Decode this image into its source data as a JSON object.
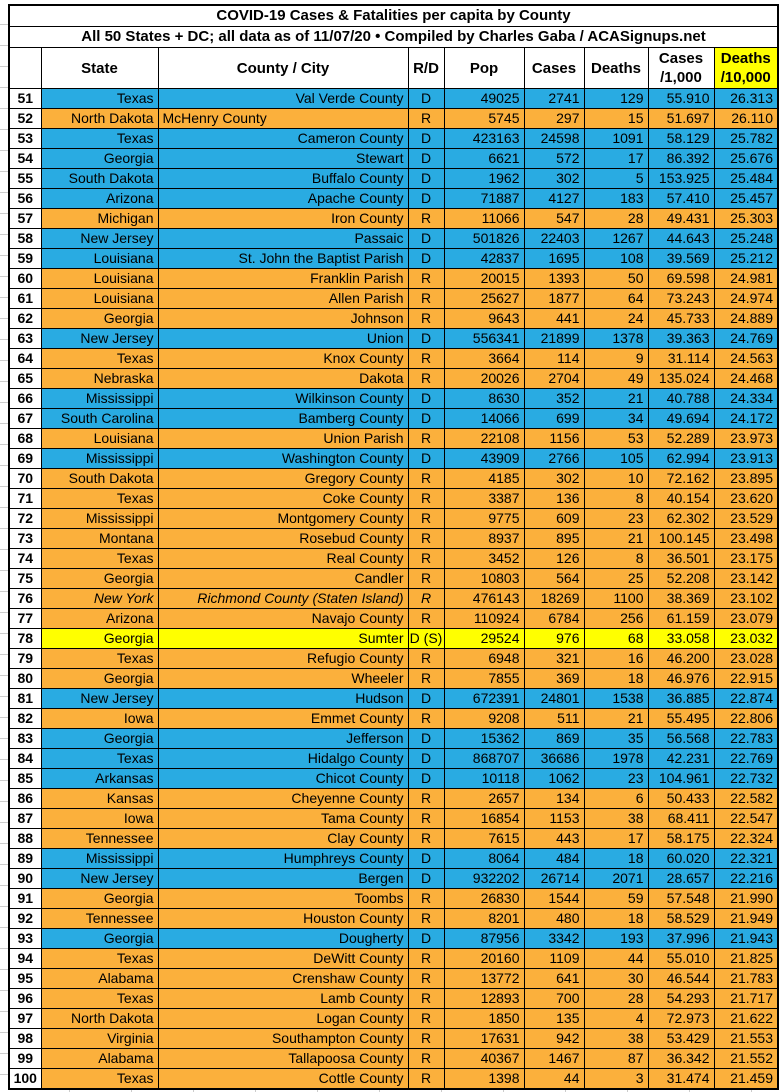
{
  "title": {
    "line1": "COVID-19 Cases & Fatalities per capita by County",
    "line2": "All 50 States + DC; all data as of 11/07/20  • Compiled by Charles Gaba / ACASignups.net"
  },
  "headers": {
    "rank": "",
    "state": "State",
    "county": "County / City",
    "rd": "R/D",
    "pop": "Pop",
    "cases": "Cases",
    "deaths": "Deaths",
    "cases_per_1000_line1": "Cases",
    "cases_per_1000_line2": "/1,000",
    "deaths_per_10000_line1": "Deaths",
    "deaths_per_10000_line2": "/10,000"
  },
  "colors": {
    "democrat_row": "#29ABE2",
    "republican_row": "#FBB03C",
    "swing_row": "#FFFF00",
    "deaths_header_highlight": "#FFFF00",
    "border": "#000000"
  },
  "rows": [
    {
      "rank": "51",
      "state": "Texas",
      "county": "Val Verde County",
      "rd": "D",
      "party": "D",
      "pop": "49025",
      "cases": "2741",
      "deaths": "129",
      "cases_per_1000": "55.910",
      "deaths_per_10000": "26.313"
    },
    {
      "rank": "52",
      "state": "North Dakota",
      "county": "McHenry County",
      "county_align": "left",
      "rd": "R",
      "party": "R",
      "pop": "5745",
      "cases": "297",
      "deaths": "15",
      "cases_per_1000": "51.697",
      "deaths_per_10000": "26.110"
    },
    {
      "rank": "53",
      "state": "Texas",
      "county": "Cameron County",
      "rd": "D",
      "party": "D",
      "pop": "423163",
      "cases": "24598",
      "deaths": "1091",
      "cases_per_1000": "58.129",
      "deaths_per_10000": "25.782"
    },
    {
      "rank": "54",
      "state": "Georgia",
      "county": "Stewart",
      "rd": "D",
      "party": "D",
      "pop": "6621",
      "cases": "572",
      "deaths": "17",
      "cases_per_1000": "86.392",
      "deaths_per_10000": "25.676"
    },
    {
      "rank": "55",
      "state": "South Dakota",
      "county": "Buffalo County",
      "rd": "D",
      "party": "D",
      "pop": "1962",
      "cases": "302",
      "deaths": "5",
      "cases_per_1000": "153.925",
      "deaths_per_10000": "25.484"
    },
    {
      "rank": "56",
      "state": "Arizona",
      "county": "Apache County",
      "rd": "D",
      "party": "D",
      "pop": "71887",
      "cases": "4127",
      "deaths": "183",
      "cases_per_1000": "57.410",
      "deaths_per_10000": "25.457"
    },
    {
      "rank": "57",
      "state": "Michigan",
      "county": "Iron County",
      "rd": "R",
      "party": "R",
      "pop": "11066",
      "cases": "547",
      "deaths": "28",
      "cases_per_1000": "49.431",
      "deaths_per_10000": "25.303"
    },
    {
      "rank": "58",
      "state": "New Jersey",
      "county": "Passaic",
      "rd": "D",
      "party": "D",
      "pop": "501826",
      "cases": "22403",
      "deaths": "1267",
      "cases_per_1000": "44.643",
      "deaths_per_10000": "25.248"
    },
    {
      "rank": "59",
      "state": "Louisiana",
      "county": "St. John the Baptist Parish",
      "rd": "D",
      "party": "D",
      "pop": "42837",
      "cases": "1695",
      "deaths": "108",
      "cases_per_1000": "39.569",
      "deaths_per_10000": "25.212"
    },
    {
      "rank": "60",
      "state": "Louisiana",
      "county": "Franklin Parish",
      "rd": "R",
      "party": "R",
      "pop": "20015",
      "cases": "1393",
      "deaths": "50",
      "cases_per_1000": "69.598",
      "deaths_per_10000": "24.981"
    },
    {
      "rank": "61",
      "state": "Louisiana",
      "county": "Allen Parish",
      "rd": "R",
      "party": "R",
      "pop": "25627",
      "cases": "1877",
      "deaths": "64",
      "cases_per_1000": "73.243",
      "deaths_per_10000": "24.974"
    },
    {
      "rank": "62",
      "state": "Georgia",
      "county": "Johnson",
      "rd": "R",
      "party": "R",
      "pop": "9643",
      "cases": "441",
      "deaths": "24",
      "cases_per_1000": "45.733",
      "deaths_per_10000": "24.889"
    },
    {
      "rank": "63",
      "state": "New Jersey",
      "county": "Union",
      "rd": "D",
      "party": "D",
      "pop": "556341",
      "cases": "21899",
      "deaths": "1378",
      "cases_per_1000": "39.363",
      "deaths_per_10000": "24.769"
    },
    {
      "rank": "64",
      "state": "Texas",
      "county": "Knox County",
      "rd": "R",
      "party": "R",
      "pop": "3664",
      "cases": "114",
      "deaths": "9",
      "cases_per_1000": "31.114",
      "deaths_per_10000": "24.563"
    },
    {
      "rank": "65",
      "state": "Nebraska",
      "county": "Dakota",
      "rd": "R",
      "party": "R",
      "pop": "20026",
      "cases": "2704",
      "deaths": "49",
      "cases_per_1000": "135.024",
      "deaths_per_10000": "24.468"
    },
    {
      "rank": "66",
      "state": "Mississippi",
      "county": "Wilkinson County",
      "rd": "D",
      "party": "D",
      "pop": "8630",
      "cases": "352",
      "deaths": "21",
      "cases_per_1000": "40.788",
      "deaths_per_10000": "24.334"
    },
    {
      "rank": "67",
      "state": "South Carolina",
      "county": "Bamberg County",
      "rd": "D",
      "party": "D",
      "pop": "14066",
      "cases": "699",
      "deaths": "34",
      "cases_per_1000": "49.694",
      "deaths_per_10000": "24.172"
    },
    {
      "rank": "68",
      "state": "Louisiana",
      "county": "Union Parish",
      "rd": "R",
      "party": "R",
      "pop": "22108",
      "cases": "1156",
      "deaths": "53",
      "cases_per_1000": "52.289",
      "deaths_per_10000": "23.973"
    },
    {
      "rank": "69",
      "state": "Mississippi",
      "county": "Washington County",
      "rd": "D",
      "party": "D",
      "pop": "43909",
      "cases": "2766",
      "deaths": "105",
      "cases_per_1000": "62.994",
      "deaths_per_10000": "23.913"
    },
    {
      "rank": "70",
      "state": "South Dakota",
      "county": "Gregory County",
      "rd": "R",
      "party": "R",
      "pop": "4185",
      "cases": "302",
      "deaths": "10",
      "cases_per_1000": "72.162",
      "deaths_per_10000": "23.895"
    },
    {
      "rank": "71",
      "state": "Texas",
      "county": "Coke County",
      "rd": "R",
      "party": "R",
      "pop": "3387",
      "cases": "136",
      "deaths": "8",
      "cases_per_1000": "40.154",
      "deaths_per_10000": "23.620"
    },
    {
      "rank": "72",
      "state": "Mississippi",
      "county": "Montgomery County",
      "rd": "R",
      "party": "R",
      "pop": "9775",
      "cases": "609",
      "deaths": "23",
      "cases_per_1000": "62.302",
      "deaths_per_10000": "23.529"
    },
    {
      "rank": "73",
      "state": "Montana",
      "county": "Rosebud County",
      "rd": "R",
      "party": "R",
      "pop": "8937",
      "cases": "895",
      "deaths": "21",
      "cases_per_1000": "100.145",
      "deaths_per_10000": "23.498"
    },
    {
      "rank": "74",
      "state": "Texas",
      "county": "Real County",
      "rd": "R",
      "party": "R",
      "pop": "3452",
      "cases": "126",
      "deaths": "8",
      "cases_per_1000": "36.501",
      "deaths_per_10000": "23.175"
    },
    {
      "rank": "75",
      "state": "Georgia",
      "county": "Candler",
      "rd": "R",
      "party": "R",
      "pop": "10803",
      "cases": "564",
      "deaths": "25",
      "cases_per_1000": "52.208",
      "deaths_per_10000": "23.142"
    },
    {
      "rank": "76",
      "state": "New York",
      "county": "Richmond County (Staten Island)",
      "rd": "R",
      "party": "R",
      "italic": true,
      "pop": "476143",
      "cases": "18269",
      "deaths": "1100",
      "cases_per_1000": "38.369",
      "deaths_per_10000": "23.102"
    },
    {
      "rank": "77",
      "state": "Arizona",
      "county": "Navajo County",
      "rd": "R",
      "party": "R",
      "pop": "110924",
      "cases": "6784",
      "deaths": "256",
      "cases_per_1000": "61.159",
      "deaths_per_10000": "23.079"
    },
    {
      "rank": "78",
      "state": "Georgia",
      "county": "Sumter",
      "rd": "D (S)",
      "party": "DS",
      "pop": "29524",
      "cases": "976",
      "deaths": "68",
      "cases_per_1000": "33.058",
      "deaths_per_10000": "23.032"
    },
    {
      "rank": "79",
      "state": "Texas",
      "county": "Refugio County",
      "rd": "R",
      "party": "R",
      "pop": "6948",
      "cases": "321",
      "deaths": "16",
      "cases_per_1000": "46.200",
      "deaths_per_10000": "23.028"
    },
    {
      "rank": "80",
      "state": "Georgia",
      "county": "Wheeler",
      "rd": "R",
      "party": "R",
      "pop": "7855",
      "cases": "369",
      "deaths": "18",
      "cases_per_1000": "46.976",
      "deaths_per_10000": "22.915"
    },
    {
      "rank": "81",
      "state": "New Jersey",
      "county": "Hudson",
      "rd": "D",
      "party": "D",
      "pop": "672391",
      "cases": "24801",
      "deaths": "1538",
      "cases_per_1000": "36.885",
      "deaths_per_10000": "22.874"
    },
    {
      "rank": "82",
      "state": "Iowa",
      "county": "Emmet County",
      "rd": "R",
      "party": "R",
      "pop": "9208",
      "cases": "511",
      "deaths": "21",
      "cases_per_1000": "55.495",
      "deaths_per_10000": "22.806"
    },
    {
      "rank": "83",
      "state": "Georgia",
      "county": "Jefferson",
      "rd": "D",
      "party": "D",
      "pop": "15362",
      "cases": "869",
      "deaths": "35",
      "cases_per_1000": "56.568",
      "deaths_per_10000": "22.783"
    },
    {
      "rank": "84",
      "state": "Texas",
      "county": "Hidalgo County",
      "rd": "D",
      "party": "D",
      "pop": "868707",
      "cases": "36686",
      "deaths": "1978",
      "cases_per_1000": "42.231",
      "deaths_per_10000": "22.769"
    },
    {
      "rank": "85",
      "state": "Arkansas",
      "county": "Chicot County",
      "rd": "D",
      "party": "D",
      "pop": "10118",
      "cases": "1062",
      "deaths": "23",
      "cases_per_1000": "104.961",
      "deaths_per_10000": "22.732"
    },
    {
      "rank": "86",
      "state": "Kansas",
      "county": "Cheyenne County",
      "rd": "R",
      "party": "R",
      "pop": "2657",
      "cases": "134",
      "deaths": "6",
      "cases_per_1000": "50.433",
      "deaths_per_10000": "22.582"
    },
    {
      "rank": "87",
      "state": "Iowa",
      "county": "Tama County",
      "rd": "R",
      "party": "R",
      "pop": "16854",
      "cases": "1153",
      "deaths": "38",
      "cases_per_1000": "68.411",
      "deaths_per_10000": "22.547"
    },
    {
      "rank": "88",
      "state": "Tennessee",
      "county": "Clay County",
      "rd": "R",
      "party": "R",
      "pop": "7615",
      "cases": "443",
      "deaths": "17",
      "cases_per_1000": "58.175",
      "deaths_per_10000": "22.324"
    },
    {
      "rank": "89",
      "state": "Mississippi",
      "county": "Humphreys County",
      "rd": "D",
      "party": "D",
      "pop": "8064",
      "cases": "484",
      "deaths": "18",
      "cases_per_1000": "60.020",
      "deaths_per_10000": "22.321"
    },
    {
      "rank": "90",
      "state": "New Jersey",
      "county": "Bergen",
      "rd": "D",
      "party": "D",
      "pop": "932202",
      "cases": "26714",
      "deaths": "2071",
      "cases_per_1000": "28.657",
      "deaths_per_10000": "22.216"
    },
    {
      "rank": "91",
      "state": "Georgia",
      "county": "Toombs",
      "rd": "R",
      "party": "R",
      "pop": "26830",
      "cases": "1544",
      "deaths": "59",
      "cases_per_1000": "57.548",
      "deaths_per_10000": "21.990"
    },
    {
      "rank": "92",
      "state": "Tennessee",
      "county": "Houston County",
      "rd": "R",
      "party": "R",
      "pop": "8201",
      "cases": "480",
      "deaths": "18",
      "cases_per_1000": "58.529",
      "deaths_per_10000": "21.949"
    },
    {
      "rank": "93",
      "state": "Georgia",
      "county": "Dougherty",
      "rd": "D",
      "party": "D",
      "pop": "87956",
      "cases": "3342",
      "deaths": "193",
      "cases_per_1000": "37.996",
      "deaths_per_10000": "21.943"
    },
    {
      "rank": "94",
      "state": "Texas",
      "county": "DeWitt County",
      "rd": "R",
      "party": "R",
      "pop": "20160",
      "cases": "1109",
      "deaths": "44",
      "cases_per_1000": "55.010",
      "deaths_per_10000": "21.825"
    },
    {
      "rank": "95",
      "state": "Alabama",
      "county": "Crenshaw County",
      "rd": "R",
      "party": "R",
      "pop": "13772",
      "cases": "641",
      "deaths": "30",
      "cases_per_1000": "46.544",
      "deaths_per_10000": "21.783"
    },
    {
      "rank": "96",
      "state": "Texas",
      "county": "Lamb County",
      "rd": "R",
      "party": "R",
      "pop": "12893",
      "cases": "700",
      "deaths": "28",
      "cases_per_1000": "54.293",
      "deaths_per_10000": "21.717"
    },
    {
      "rank": "97",
      "state": "North Dakota",
      "county": "Logan County",
      "rd": "R",
      "party": "R",
      "pop": "1850",
      "cases": "135",
      "deaths": "4",
      "cases_per_1000": "72.973",
      "deaths_per_10000": "21.622"
    },
    {
      "rank": "98",
      "state": "Virginia",
      "county": "Southampton County",
      "rd": "R",
      "party": "R",
      "pop": "17631",
      "cases": "942",
      "deaths": "38",
      "cases_per_1000": "53.429",
      "deaths_per_10000": "21.553"
    },
    {
      "rank": "99",
      "state": "Alabama",
      "county": "Tallapoosa County",
      "rd": "R",
      "party": "R",
      "pop": "40367",
      "cases": "1467",
      "deaths": "87",
      "cases_per_1000": "36.342",
      "deaths_per_10000": "21.552"
    },
    {
      "rank": "100",
      "state": "Texas",
      "county": "Cottle County",
      "rd": "R",
      "party": "R",
      "pop": "1398",
      "cases": "44",
      "deaths": "3",
      "cases_per_1000": "31.474",
      "deaths_per_10000": "21.459"
    }
  ]
}
